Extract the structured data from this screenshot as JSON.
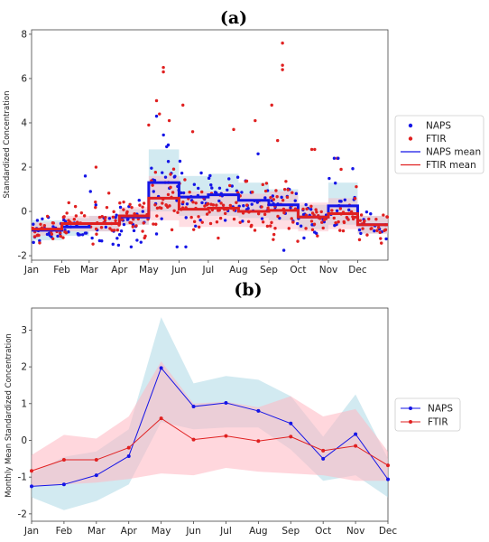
{
  "chart_data": [
    {
      "panel": "(a)",
      "type": "scatter",
      "title": "(a)",
      "xlabel": "",
      "ylabel": "Standardized Concentration",
      "xlim": [
        0,
        365
      ],
      "ylim": [
        -2.2,
        8.2
      ],
      "yticks": [
        -2,
        0,
        2,
        4,
        6,
        8
      ],
      "month_ticks": [
        {
          "label": "Jan",
          "day": 1
        },
        {
          "label": "Feb",
          "day": 32
        },
        {
          "label": "Mar",
          "day": 60
        },
        {
          "label": "Apr",
          "day": 91
        },
        {
          "label": "May",
          "day": 121
        },
        {
          "label": "Jun",
          "day": 152
        },
        {
          "label": "Jul",
          "day": 182
        },
        {
          "label": "Aug",
          "day": 213
        },
        {
          "label": "Sep",
          "day": 244
        },
        {
          "label": "Oct",
          "day": 274
        },
        {
          "label": "Nov",
          "day": 305
        },
        {
          "label": "Dec",
          "day": 335
        }
      ],
      "legend": {
        "placement": "right",
        "entries": [
          {
            "label": "NAPS",
            "kind": "marker",
            "color": "#1515e6"
          },
          {
            "label": "FTIR",
            "kind": "marker",
            "color": "#e02020"
          },
          {
            "label": "NAPS mean",
            "kind": "line",
            "color": "#1515e6"
          },
          {
            "label": "FTIR mean",
            "kind": "line",
            "color": "#e02020"
          }
        ]
      },
      "outliers": [
        {
          "series": "FTIR",
          "x": 135,
          "y": 6.5
        },
        {
          "series": "FTIR",
          "x": 135,
          "y": 6.3
        },
        {
          "series": "FTIR",
          "x": 128,
          "y": 5.0
        },
        {
          "series": "FTIR",
          "x": 131,
          "y": 4.4
        },
        {
          "series": "FTIR",
          "x": 141,
          "y": 4.1
        },
        {
          "series": "FTIR",
          "x": 155,
          "y": 4.8
        },
        {
          "series": "FTIR",
          "x": 257,
          "y": 7.6
        },
        {
          "series": "FTIR",
          "x": 257,
          "y": 6.6
        },
        {
          "series": "FTIR",
          "x": 257,
          "y": 6.4
        },
        {
          "series": "FTIR",
          "x": 246,
          "y": 4.8
        },
        {
          "series": "FTIR",
          "x": 229,
          "y": 4.1
        },
        {
          "series": "FTIR",
          "x": 120,
          "y": 3.9
        },
        {
          "series": "FTIR",
          "x": 165,
          "y": 3.6
        },
        {
          "series": "FTIR",
          "x": 207,
          "y": 3.7
        },
        {
          "series": "FTIR",
          "x": 252,
          "y": 3.2
        },
        {
          "series": "FTIR",
          "x": 313,
          "y": 2.4
        },
        {
          "series": "FTIR",
          "x": 317,
          "y": 1.9
        },
        {
          "series": "FTIR",
          "x": 66,
          "y": 2.0
        },
        {
          "series": "FTIR",
          "x": 287,
          "y": 2.8
        },
        {
          "series": "FTIR",
          "x": 290,
          "y": 2.8
        },
        {
          "series": "NAPS",
          "x": 128,
          "y": 4.3
        },
        {
          "series": "NAPS",
          "x": 140,
          "y": 3.0
        },
        {
          "series": "NAPS",
          "x": 310,
          "y": 2.4
        },
        {
          "series": "NAPS",
          "x": 314,
          "y": 2.4
        },
        {
          "series": "NAPS",
          "x": 55,
          "y": 1.6
        },
        {
          "series": "NAPS",
          "x": 232,
          "y": 2.6
        },
        {
          "series": "NAPS",
          "x": 149,
          "y": -1.6
        },
        {
          "series": "NAPS",
          "x": 158,
          "y": -1.6
        },
        {
          "series": "NAPS",
          "x": 102,
          "y": -1.6
        },
        {
          "series": "NAPS",
          "x": 108,
          "y": -1.3
        },
        {
          "series": "NAPS",
          "x": 279,
          "y": -1.2
        },
        {
          "series": "NAPS",
          "x": 2,
          "y": -1.4
        }
      ],
      "scatter_spread": {
        "note": "bulk of daily points, spread around each monthly mean",
        "NAPS_sd": [
          0.45,
          0.55,
          0.65,
          0.7,
          1.2,
          0.9,
          0.8,
          0.8,
          0.7,
          0.6,
          0.8,
          0.45
        ],
        "FTIR_sd": [
          0.4,
          0.5,
          0.6,
          0.65,
          1.0,
          0.85,
          0.85,
          0.85,
          0.85,
          0.7,
          0.6,
          0.4
        ]
      },
      "monthly_means": {
        "NAPS": [
          -0.85,
          -0.7,
          -0.55,
          -0.25,
          1.3,
          0.65,
          0.75,
          0.5,
          0.3,
          -0.25,
          0.25,
          -0.6
        ],
        "FTIR": [
          -0.8,
          -0.55,
          -0.55,
          -0.2,
          0.6,
          0.1,
          0.15,
          0.0,
          0.05,
          -0.25,
          -0.1,
          -0.6
        ]
      },
      "bands": {
        "NAPS": {
          "lo": [
            -1.3,
            -1.1,
            -0.9,
            -0.6,
            0.0,
            -0.2,
            -0.2,
            -0.3,
            -0.4,
            -0.8,
            -0.6,
            -1.0
          ],
          "hi": [
            -0.4,
            -0.3,
            -0.2,
            0.1,
            2.8,
            1.6,
            1.7,
            1.3,
            1.0,
            0.3,
            1.3,
            -0.2
          ]
        },
        "FTIR": {
          "lo": [
            -1.1,
            -0.9,
            -0.9,
            -0.6,
            -0.4,
            -0.7,
            -0.7,
            -0.7,
            -0.8,
            -0.9,
            -0.8,
            -1.0
          ],
          "hi": [
            -0.5,
            -0.2,
            -0.2,
            0.2,
            1.6,
            0.9,
            0.9,
            0.8,
            0.9,
            0.4,
            0.6,
            -0.2
          ]
        }
      }
    },
    {
      "panel": "(b)",
      "type": "line",
      "title": "(b)",
      "xlabel": "",
      "ylabel": "Monthly Mean Standardized Concentration",
      "categories": [
        "Jan",
        "Feb",
        "Mar",
        "Apr",
        "May",
        "Jun",
        "Jul",
        "Aug",
        "Sep",
        "Oct",
        "Nov",
        "Dec"
      ],
      "ylim": [
        -2.2,
        3.6
      ],
      "yticks": [
        -2,
        -1,
        0,
        1,
        2,
        3
      ],
      "legend": {
        "placement": "right"
      },
      "series": [
        {
          "name": "NAPS",
          "color": "#1515e6",
          "band_color": "#add8e6",
          "values": [
            -1.25,
            -1.2,
            -0.95,
            -0.43,
            1.97,
            0.92,
            1.02,
            0.8,
            0.46,
            -0.5,
            0.17,
            -1.06
          ],
          "band_lo": [
            -1.55,
            -1.9,
            -1.65,
            -1.2,
            0.5,
            0.3,
            0.35,
            0.35,
            -0.25,
            -1.1,
            -0.95,
            -1.55
          ],
          "band_hi": [
            -0.9,
            -0.45,
            -0.3,
            0.3,
            3.35,
            1.55,
            1.75,
            1.65,
            1.2,
            0.1,
            1.25,
            -0.5
          ]
        },
        {
          "name": "FTIR",
          "color": "#e02020",
          "band_color": "#ffb6c1",
          "values": [
            -0.83,
            -0.53,
            -0.53,
            -0.2,
            0.6,
            0.02,
            0.12,
            -0.02,
            0.1,
            -0.28,
            -0.15,
            -0.68
          ],
          "band_lo": [
            -1.25,
            -1.2,
            -1.15,
            -1.05,
            -0.9,
            -0.95,
            -0.75,
            -0.85,
            -0.9,
            -0.95,
            -1.1,
            -1.1
          ],
          "band_hi": [
            -0.4,
            0.15,
            0.05,
            0.65,
            2.15,
            1.0,
            1.05,
            0.9,
            1.2,
            0.65,
            0.85,
            -0.3
          ]
        }
      ]
    }
  ]
}
